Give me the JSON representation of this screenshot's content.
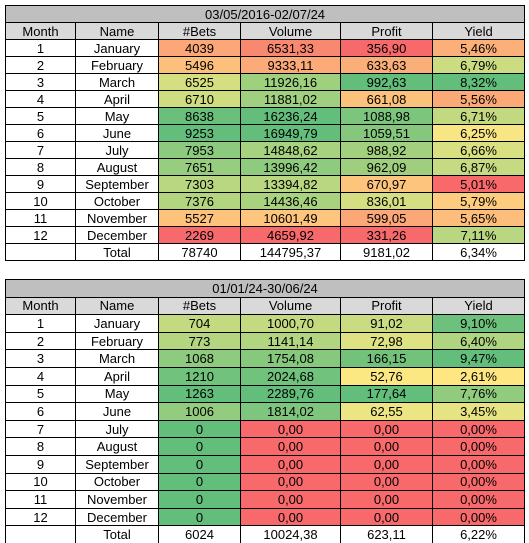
{
  "tables": [
    {
      "title": "03/05/2016-02/07/24",
      "headers": [
        "Month",
        "Name",
        "#Bets",
        "Volume",
        "Profit",
        "Yield"
      ],
      "rows": [
        [
          "1",
          "January",
          "4039",
          "6531,33",
          "356,90",
          "5,46%"
        ],
        [
          "2",
          "February",
          "5496",
          "9333,11",
          "633,63",
          "6,79%"
        ],
        [
          "3",
          "March",
          "6525",
          "11926,16",
          "992,63",
          "8,32%"
        ],
        [
          "4",
          "April",
          "6710",
          "11881,02",
          "661,08",
          "5,56%"
        ],
        [
          "5",
          "May",
          "8638",
          "16236,24",
          "1088,98",
          "6,71%"
        ],
        [
          "6",
          "June",
          "9253",
          "16949,79",
          "1059,51",
          "6,25%"
        ],
        [
          "7",
          "July",
          "7953",
          "14848,62",
          "988,92",
          "6,66%"
        ],
        [
          "8",
          "August",
          "7651",
          "13996,42",
          "962,09",
          "6,87%"
        ],
        [
          "9",
          "September",
          "7303",
          "13394,82",
          "670,97",
          "5,01%"
        ],
        [
          "10",
          "October",
          "7376",
          "14436,46",
          "836,01",
          "5,79%"
        ],
        [
          "11",
          "November",
          "5527",
          "10601,49",
          "599,05",
          "5,65%"
        ],
        [
          "12",
          "December",
          "2269",
          "4659,92",
          "331,26",
          "7,11%"
        ]
      ],
      "cell_colors": [
        [
          "#fba777",
          "#f98870",
          "#f8696b",
          "#fcb079"
        ],
        [
          "#fdc07c",
          "#fcaa78",
          "#fbaf78",
          "#cbdc81"
        ],
        [
          "#d5df82",
          "#9ed07e",
          "#63be7b",
          "#63be7b"
        ],
        [
          "#cfdd81",
          "#a0d07f",
          "#fcc27c",
          "#fbaa77"
        ],
        [
          "#6ac07b",
          "#63be7b",
          "#7cc57c",
          "#c3d980"
        ],
        [
          "#63be7b",
          "#63be7b",
          "#85c87d",
          "#f7e683"
        ],
        [
          "#8ccb7e",
          "#a7d27f",
          "#a3d07f",
          "#d8e082"
        ],
        [
          "#97cd7e",
          "#8fcb7e",
          "#9fcf7e",
          "#c5da81"
        ],
        [
          "#b8d780",
          "#b9d780",
          "#fdc47d",
          "#f8696b"
        ],
        [
          "#b3d580",
          "#a9d27f",
          "#d5df82",
          "#fdcc7e"
        ],
        [
          "#fdc27c",
          "#fdc57d",
          "#fba777",
          "#fdbd7b"
        ],
        [
          "#f8696b",
          "#f8696b",
          "#f8696b",
          "#b9d780"
        ]
      ],
      "total": {
        "label": "Total",
        "values": [
          "78740",
          "144795,37",
          "9181,02",
          "6,34%"
        ]
      }
    },
    {
      "title": "01/01/24-30/06/24",
      "headers": [
        "Month",
        "Name",
        "#Bets",
        "Volume",
        "Profit",
        "Yield"
      ],
      "rows": [
        [
          "1",
          "January",
          "704",
          "1000,70",
          "91,02",
          "9,10%"
        ],
        [
          "2",
          "February",
          "773",
          "1141,14",
          "72,98",
          "6,40%"
        ],
        [
          "3",
          "March",
          "1068",
          "1754,08",
          "166,15",
          "9,47%"
        ],
        [
          "4",
          "April",
          "1210",
          "2024,68",
          "52,76",
          "2,61%"
        ],
        [
          "5",
          "May",
          "1263",
          "2289,76",
          "177,64",
          "7,76%"
        ],
        [
          "6",
          "June",
          "1006",
          "1814,02",
          "62,55",
          "3,45%"
        ],
        [
          "7",
          "July",
          "0",
          "0,00",
          "0,00",
          "0,00%"
        ],
        [
          "8",
          "August",
          "0",
          "0,00",
          "0,00",
          "0,00%"
        ],
        [
          "9",
          "September",
          "0",
          "0,00",
          "0,00",
          "0,00%"
        ],
        [
          "10",
          "October",
          "0",
          "0,00",
          "0,00",
          "0,00%"
        ],
        [
          "11",
          "November",
          "0",
          "0,00",
          "0,00",
          "0,00%"
        ],
        [
          "12",
          "December",
          "0",
          "0,00",
          "0,00",
          "0,00%"
        ]
      ],
      "cell_colors": [
        [
          "#c3da81",
          "#c4da81",
          "#cadb81",
          "#6ec17c"
        ],
        [
          "#b4d680",
          "#b1d580",
          "#dfe282",
          "#b0d580"
        ],
        [
          "#8ecb7e",
          "#86c97d",
          "#72c27c",
          "#63be7b"
        ],
        [
          "#70c27c",
          "#70c27c",
          "#fce883",
          "#fee683"
        ],
        [
          "#63be7b",
          "#63be7b",
          "#63be7b",
          "#90cb7e"
        ],
        [
          "#93cc7e",
          "#7ec67d",
          "#ece583",
          "#e5e382"
        ],
        [
          "#63be7b",
          "#f8696b",
          "#f8696b",
          "#f8696b"
        ],
        [
          "#63be7b",
          "#f8696b",
          "#f8696b",
          "#f8696b"
        ],
        [
          "#63be7b",
          "#f8696b",
          "#f8696b",
          "#f8696b"
        ],
        [
          "#63be7b",
          "#f8696b",
          "#f8696b",
          "#f8696b"
        ],
        [
          "#63be7b",
          "#f8696b",
          "#f8696b",
          "#f8696b"
        ],
        [
          "#63be7b",
          "#f8696b",
          "#f8696b",
          "#f8696b"
        ]
      ],
      "total": {
        "label": "Total",
        "values": [
          "6024",
          "10024,38",
          "623,11",
          "6,22%"
        ]
      }
    }
  ]
}
